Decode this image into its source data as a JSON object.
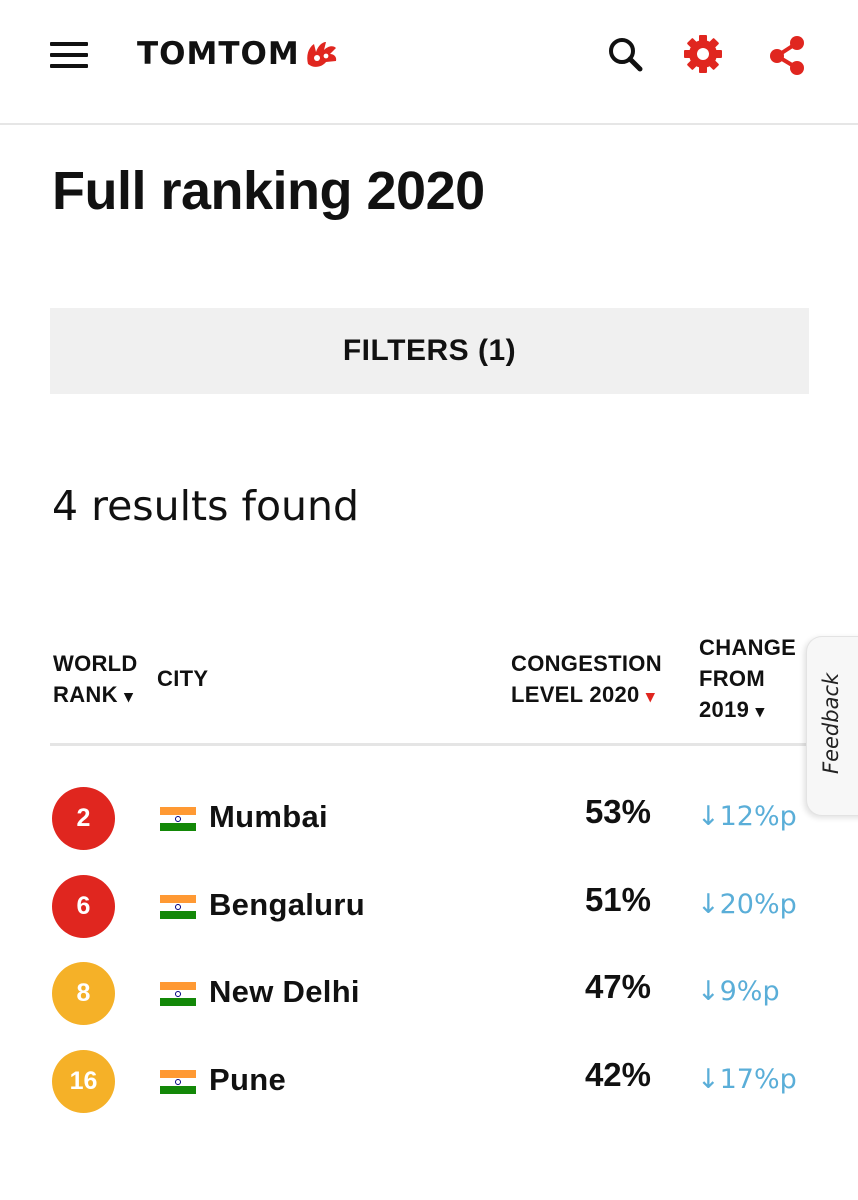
{
  "header": {
    "logo_text": "TOMTOM",
    "icons": {
      "menu": "hamburger-menu-icon",
      "search": "search-icon",
      "settings": "gear-icon",
      "share": "share-icon"
    }
  },
  "page": {
    "title": "Full ranking 2020"
  },
  "filters": {
    "label": "FILTERS (1)"
  },
  "results": {
    "count_text": "4 results found"
  },
  "table": {
    "headers": {
      "rank_line1": "WORLD",
      "rank_line2": "RANK",
      "city": "CITY",
      "congestion_line1": "CONGESTION",
      "congestion_line2": "LEVEL 2020",
      "change_line1": "CHANGE",
      "change_line2": "FROM",
      "change_line3": "2019",
      "sort_arrow": "▾"
    },
    "rows": [
      {
        "rank": "2",
        "badge_color": "#e0261f",
        "flag": "india-flag",
        "city": "Mumbai",
        "congestion": "53%",
        "change": "↓12%p"
      },
      {
        "rank": "6",
        "badge_color": "#e0261f",
        "flag": "india-flag",
        "city": "Bengaluru",
        "congestion": "51%",
        "change": "↓20%p"
      },
      {
        "rank": "8",
        "badge_color": "#f5b128",
        "flag": "india-flag",
        "city": "New Delhi",
        "congestion": "47%",
        "change": "↓9%p"
      },
      {
        "rank": "16",
        "badge_color": "#f5b128",
        "flag": "india-flag",
        "city": "Pune",
        "congestion": "42%",
        "change": "↓17%p"
      }
    ]
  },
  "feedback": {
    "label": "Feedback"
  },
  "colors": {
    "brand_red": "#e0261f",
    "rank_high": "#e0261f",
    "rank_mid": "#f5b128",
    "change_blue": "#5aaed8",
    "filter_bg": "#f0f0f0"
  }
}
